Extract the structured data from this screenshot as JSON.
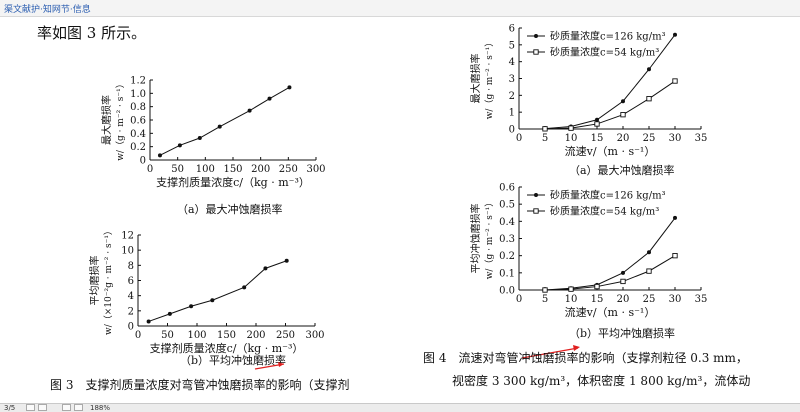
{
  "header": {
    "doc_title": "渠文献护·知网节·信息"
  },
  "intro_text": "率如图 3 所示。",
  "figure3": {
    "caption": "图 3　支撑剂质量浓度对弯管冲蚀磨损率的影响（支撑剂"
  },
  "figure4": {
    "caption_line1": "图 4　流速对弯管冲蚀磨损率的影响（支撑剂粒径 0.3 mm，",
    "caption_line2": "视密度 3 300 kg/m³，体积密度 1 800 kg/m³，流体动"
  },
  "status": {
    "page": "3/5",
    "zoom": "188%"
  },
  "colors": {
    "line": "#111111",
    "arrow": "#e02020",
    "link": "#2a5db0"
  },
  "chart_data": [
    {
      "id": "fig3a",
      "type": "line",
      "caption": "（a）最大冲蚀磨损率",
      "xlabel": "支撑剂质量浓度c/（kg · m⁻³）",
      "ylabel": "最大磨损率",
      "ylabel2": "w/（g · m⁻² · s⁻¹）",
      "xlim": [
        0,
        300
      ],
      "ylim": [
        0,
        1.2
      ],
      "xticks": [
        0,
        50,
        100,
        150,
        200,
        250,
        300
      ],
      "yticks": [
        0,
        0.2,
        0.4,
        0.6,
        0.8,
        1.0,
        1.2
      ],
      "ytick_labels": [
        "0",
        "0.2",
        "0.4",
        "0.6",
        "0.8",
        "1.0",
        "1.2"
      ],
      "series": [
        {
          "marker": "filled",
          "x": [
            18,
            54,
            90,
            126,
            180,
            216,
            252
          ],
          "y": [
            0.07,
            0.22,
            0.33,
            0.5,
            0.74,
            0.92,
            1.09
          ]
        }
      ]
    },
    {
      "id": "fig3b",
      "type": "line",
      "caption": "（b）平均冲蚀磨损率",
      "xlabel": "支撑剂质量浓度c/（kg · m⁻³）",
      "ylabel": "平均磨损率",
      "ylabel2": "w/（×10⁻²g · m⁻² · s⁻¹）",
      "xlim": [
        0,
        300
      ],
      "ylim": [
        0,
        12
      ],
      "xticks": [
        0,
        50,
        100,
        150,
        200,
        250,
        300
      ],
      "yticks": [
        0,
        2,
        4,
        6,
        8,
        10,
        12
      ],
      "ytick_labels": [
        "0",
        "2",
        "4",
        "6",
        "8",
        "10",
        "12"
      ],
      "series": [
        {
          "marker": "filled",
          "x": [
            18,
            54,
            90,
            126,
            180,
            216,
            252
          ],
          "y": [
            0.6,
            1.6,
            2.6,
            3.4,
            5.1,
            7.6,
            8.6
          ]
        }
      ]
    },
    {
      "id": "fig4a",
      "type": "line",
      "caption": "（a）最大冲蚀磨损率",
      "xlabel": "流速v/（m · s⁻¹）",
      "ylabel": "最大磨损率",
      "ylabel2": "w/（g · m⁻² · s⁻¹）",
      "xlim": [
        0,
        35
      ],
      "ylim": [
        0,
        6
      ],
      "xticks": [
        0,
        5,
        10,
        15,
        20,
        25,
        30,
        35
      ],
      "yticks": [
        0,
        1,
        2,
        3,
        4,
        5,
        6
      ],
      "ytick_labels": [
        "0",
        "1",
        "2",
        "3",
        "4",
        "5",
        "6"
      ],
      "legend_position": "top-left",
      "series": [
        {
          "name": "砂质量浓度c=126 kg/m³",
          "marker": "filled",
          "x": [
            5,
            10,
            15,
            20,
            25,
            30
          ],
          "y": [
            0.02,
            0.15,
            0.55,
            1.65,
            3.55,
            5.6
          ]
        },
        {
          "name": "砂质量浓度c=54 kg/m³",
          "marker": "open",
          "x": [
            5,
            10,
            15,
            20,
            25,
            30
          ],
          "y": [
            0.01,
            0.05,
            0.3,
            0.85,
            1.8,
            2.85
          ]
        }
      ]
    },
    {
      "id": "fig4b",
      "type": "line",
      "caption": "（b）平均冲蚀磨损率",
      "xlabel": "流速v/（m · s⁻¹）",
      "ylabel": "平均冲蚀磨损率",
      "ylabel2": "w/（g · m⁻² · s⁻¹）",
      "xlim": [
        0,
        35
      ],
      "ylim": [
        0,
        0.6
      ],
      "xticks": [
        0,
        5,
        10,
        15,
        20,
        25,
        30,
        35
      ],
      "yticks": [
        0,
        0.1,
        0.2,
        0.3,
        0.4,
        0.5,
        0.6
      ],
      "ytick_labels": [
        "0.0",
        "0.1",
        "0.2",
        "0.3",
        "0.4",
        "0.5",
        "0.6"
      ],
      "legend_position": "top-left",
      "series": [
        {
          "name": "砂质量浓度c=126 kg/m³",
          "marker": "filled",
          "x": [
            5,
            10,
            15,
            20,
            25,
            30
          ],
          "y": [
            0.0,
            0.01,
            0.03,
            0.1,
            0.22,
            0.42
          ]
        },
        {
          "name": "砂质量浓度c=54 kg/m³",
          "marker": "open",
          "x": [
            5,
            10,
            15,
            20,
            25,
            30
          ],
          "y": [
            0.0,
            0.005,
            0.02,
            0.05,
            0.11,
            0.2
          ]
        }
      ]
    }
  ]
}
